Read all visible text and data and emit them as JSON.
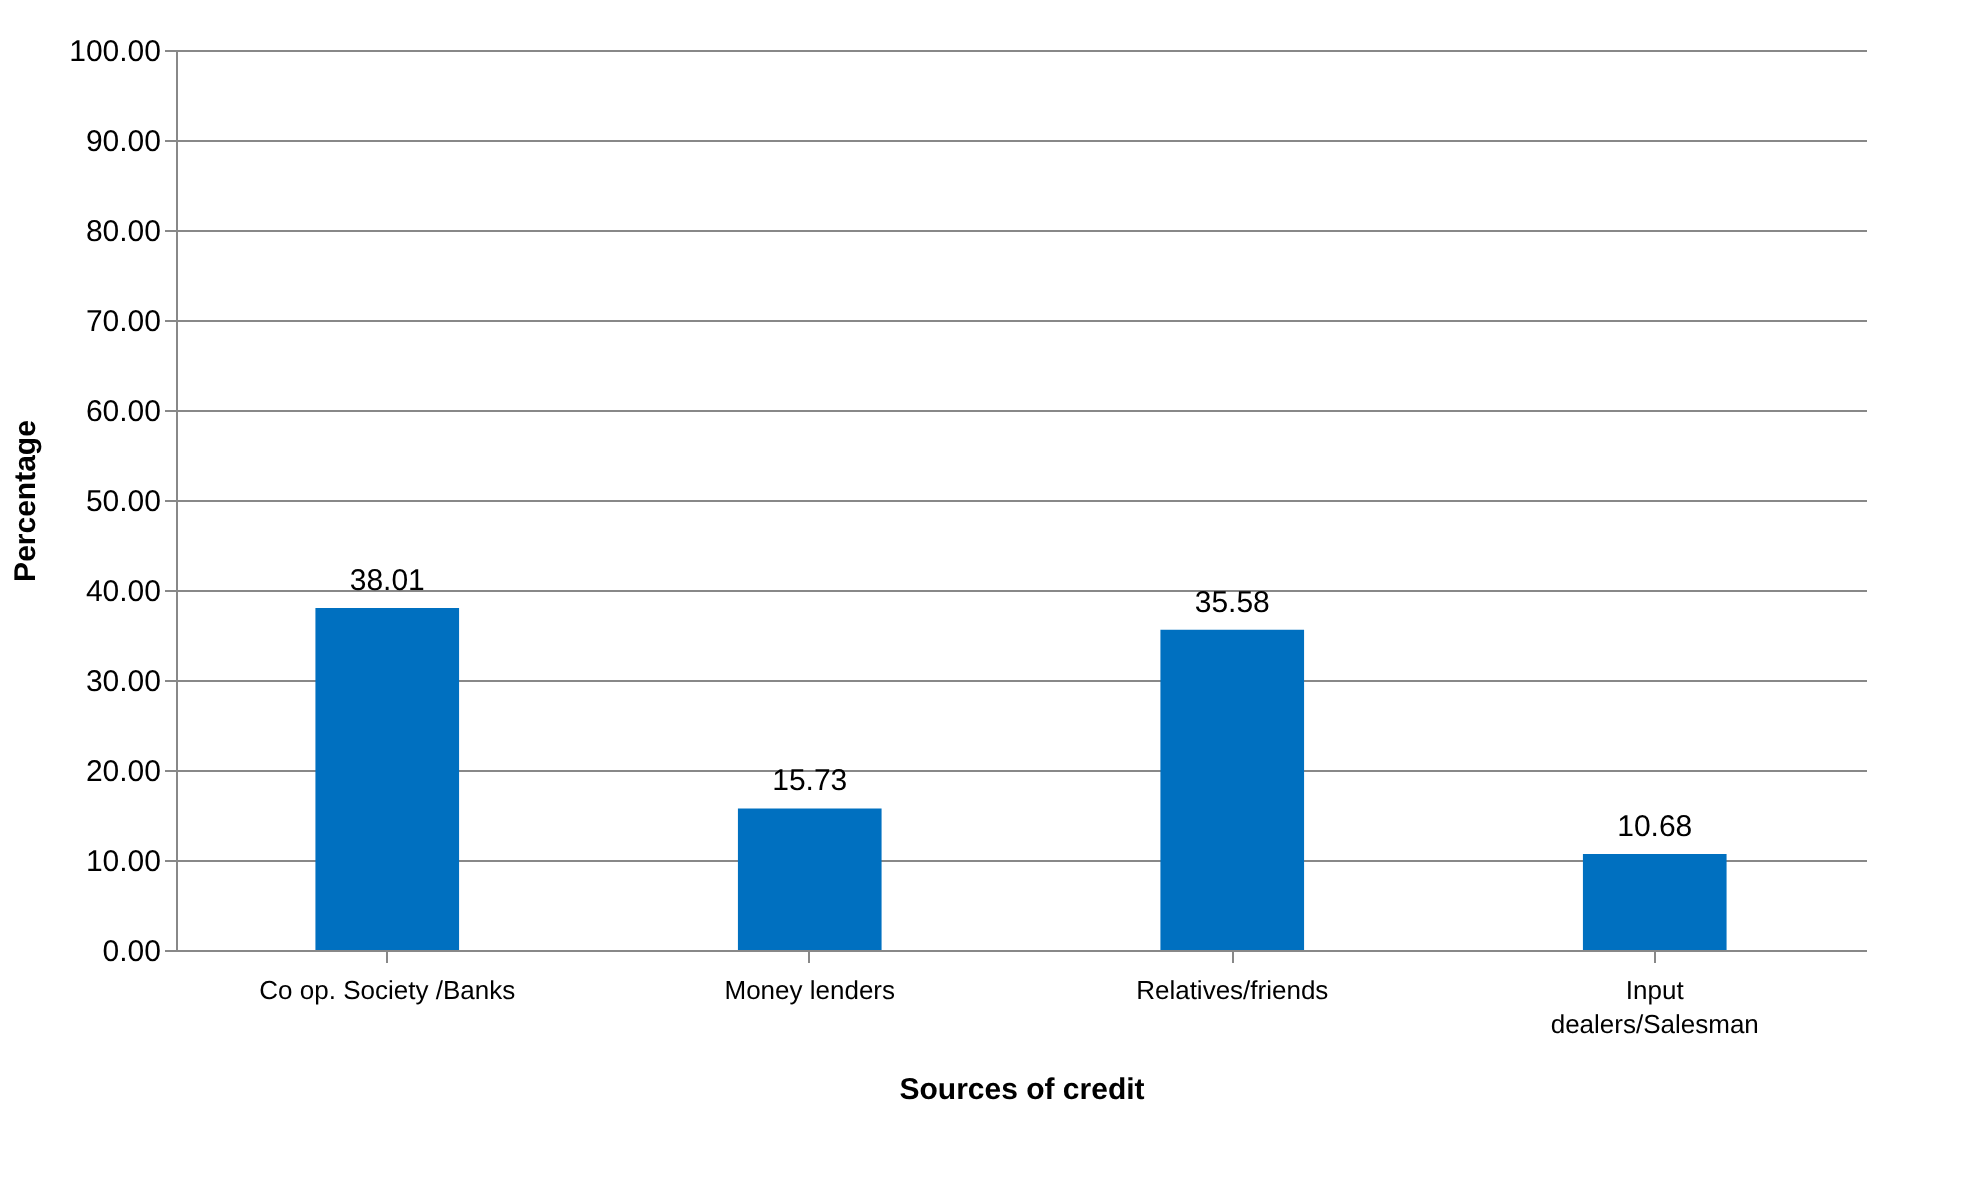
{
  "chart_data": {
    "type": "bar",
    "xlabel": "Sources of credit",
    "ylabel": "Percentage",
    "categories": [
      "Co op. Society /Banks",
      "Money lenders",
      "Relatives/friends",
      "Input dealers/Salesman"
    ],
    "values": [
      38.01,
      15.73,
      35.58,
      10.68
    ],
    "color": "#0070c0",
    "ylim": [
      0,
      100
    ],
    "yticks": [
      {
        "value": 0,
        "label": "0.00"
      },
      {
        "value": 10,
        "label": "10.00"
      },
      {
        "value": 20,
        "label": "20.00"
      },
      {
        "value": 30,
        "label": "30.00"
      },
      {
        "value": 40,
        "label": "40.00"
      },
      {
        "value": 50,
        "label": "50.00"
      },
      {
        "value": 60,
        "label": "60.00"
      },
      {
        "value": 70,
        "label": "70.00"
      },
      {
        "value": 80,
        "label": "80.00"
      },
      {
        "value": 90,
        "label": "90.00"
      },
      {
        "value": 100,
        "label": "100.00"
      }
    ],
    "grid": "y",
    "data_labels": true
  }
}
